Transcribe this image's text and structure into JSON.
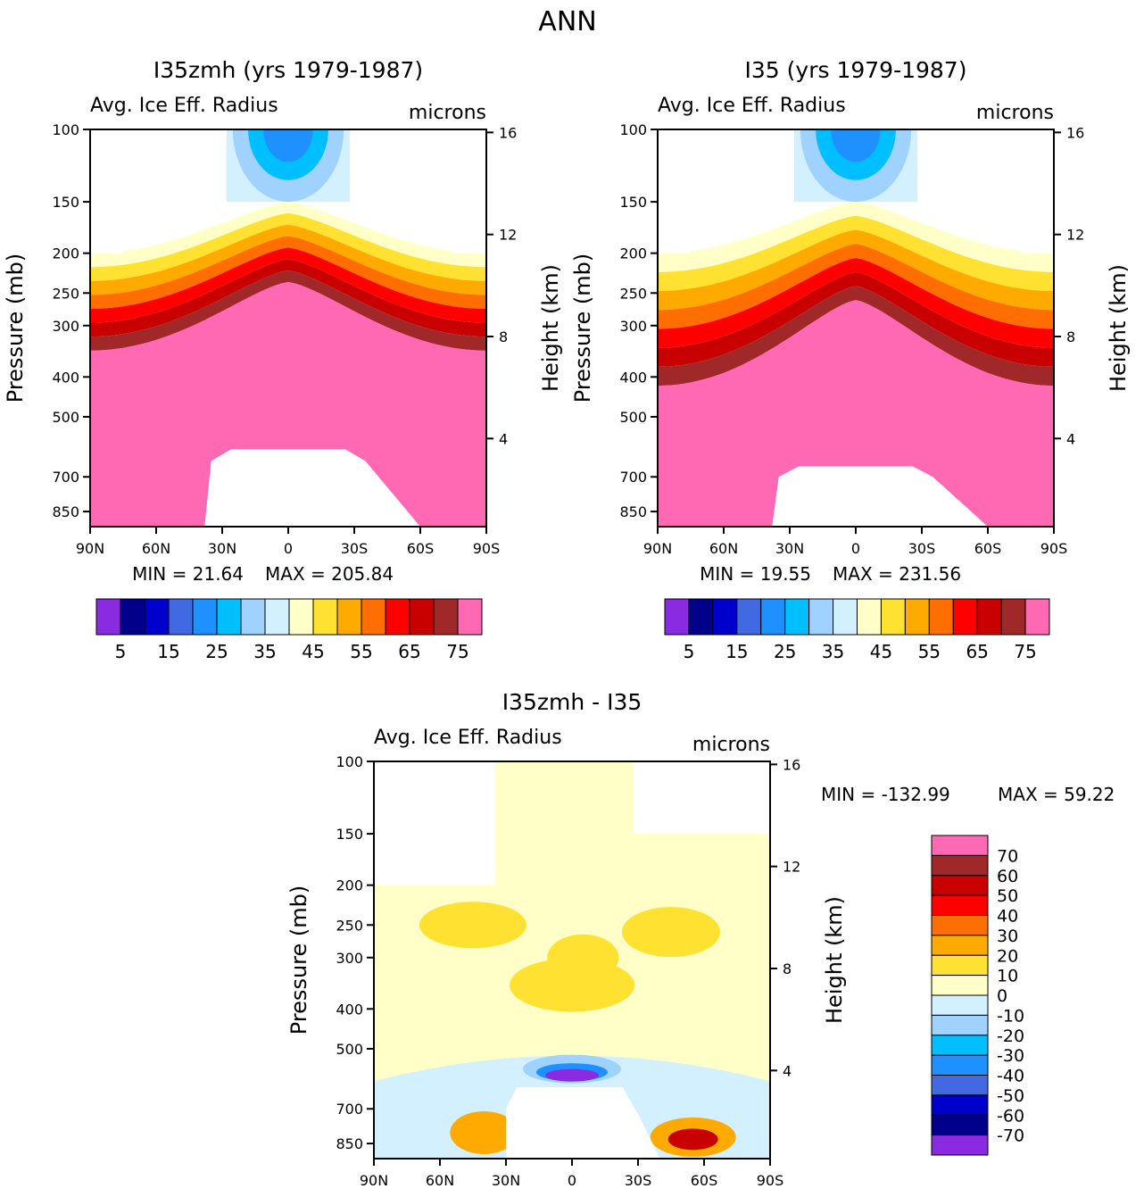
{
  "figure_title": "ANN",
  "chart_data": [
    {
      "type": "heatmap",
      "title": "I35zmh (yrs 1979-1987)",
      "field_label": "Avg. Ice Eff. Radius",
      "units": "microns",
      "xlabel": "",
      "ylabel": "Pressure (mb)",
      "y2label": "Height (km)",
      "x_ticks": [
        "90N",
        "60N",
        "30N",
        "0",
        "30S",
        "60S",
        "90S"
      ],
      "x_values": [
        90,
        60,
        30,
        0,
        -30,
        -60,
        -90
      ],
      "y_ticks": [
        "100",
        "150",
        "200",
        "250",
        "300",
        "400",
        "500",
        "700",
        "850"
      ],
      "y2_ticks": [
        "16",
        "12",
        "8",
        "4"
      ],
      "ylim": [
        100,
        925
      ],
      "min_label": "MIN =   21.64",
      "max_label": "MAX = 205.84",
      "min": 21.64,
      "max": 205.84,
      "profile": {
        "tropopause_equator_mb": 150,
        "tropopause_pole_mb": 200,
        "core_top_equator_mb": 235,
        "core_top_pole_mb": 345
      },
      "colorbar": {
        "orientation": "horizontal",
        "labels": [
          "5",
          "15",
          "25",
          "35",
          "45",
          "55",
          "65",
          "75"
        ],
        "colors": [
          "#8a2be2",
          "#00008b",
          "#0000cd",
          "#4169e1",
          "#1e90ff",
          "#00bfff",
          "#a0d2ff",
          "#d2f0ff",
          "#ffffc8",
          "#ffe132",
          "#ffaa00",
          "#ff6e00",
          "#ff0000",
          "#c80000",
          "#a02828",
          "#ff69b4"
        ]
      }
    },
    {
      "type": "heatmap",
      "title": "I35 (yrs 1979-1987)",
      "field_label": "Avg. Ice Eff. Radius",
      "units": "microns",
      "xlabel": "",
      "ylabel": "Pressure (mb)",
      "y2label": "Height (km)",
      "x_ticks": [
        "90N",
        "60N",
        "30N",
        "0",
        "30S",
        "60S",
        "90S"
      ],
      "x_values": [
        90,
        60,
        30,
        0,
        -30,
        -60,
        -90
      ],
      "y_ticks": [
        "100",
        "150",
        "200",
        "250",
        "300",
        "400",
        "500",
        "700",
        "850"
      ],
      "y2_ticks": [
        "16",
        "12",
        "8",
        "4"
      ],
      "ylim": [
        100,
        925
      ],
      "min_label": "MIN =   19.55",
      "max_label": "MAX = 231.56",
      "min": 19.55,
      "max": 231.56,
      "profile": {
        "tropopause_equator_mb": 150,
        "tropopause_pole_mb": 200,
        "core_top_equator_mb": 260,
        "core_top_pole_mb": 420
      },
      "colorbar": {
        "orientation": "horizontal",
        "labels": [
          "5",
          "15",
          "25",
          "35",
          "45",
          "55",
          "65",
          "75"
        ],
        "colors": [
          "#8a2be2",
          "#00008b",
          "#0000cd",
          "#4169e1",
          "#1e90ff",
          "#00bfff",
          "#a0d2ff",
          "#d2f0ff",
          "#ffffc8",
          "#ffe132",
          "#ffaa00",
          "#ff6e00",
          "#ff0000",
          "#c80000",
          "#a02828",
          "#ff69b4"
        ]
      }
    },
    {
      "type": "heatmap",
      "title": "I35zmh - I35",
      "field_label": "Avg. Ice Eff. Radius",
      "units": "microns",
      "xlabel": "",
      "ylabel": "Pressure (mb)",
      "y2label": "Height (km)",
      "x_ticks": [
        "90N",
        "60N",
        "30N",
        "0",
        "30S",
        "60S",
        "90S"
      ],
      "x_values": [
        90,
        60,
        30,
        0,
        -30,
        -60,
        -90
      ],
      "y_ticks": [
        "100",
        "150",
        "200",
        "250",
        "300",
        "400",
        "500",
        "700",
        "850"
      ],
      "y2_ticks": [
        "16",
        "12",
        "8",
        "4"
      ],
      "ylim": [
        100,
        925
      ],
      "min_label": "MIN = -132.99",
      "max_label": "MAX =   59.22",
      "min": -132.99,
      "max": 59.22,
      "colorbar": {
        "orientation": "vertical",
        "labels": [
          "70",
          "60",
          "50",
          "40",
          "30",
          "20",
          "10",
          "0",
          "-10",
          "-20",
          "-30",
          "-40",
          "-50",
          "-60",
          "-70"
        ],
        "colors": [
          "#ff69b4",
          "#a02828",
          "#c80000",
          "#ff0000",
          "#ff6e00",
          "#ffaa00",
          "#ffe132",
          "#ffffc8",
          "#d2f0ff",
          "#a0d2ff",
          "#00bfff",
          "#1e90ff",
          "#4169e1",
          "#0000cd",
          "#00008b",
          "#8a2be2"
        ]
      }
    }
  ]
}
